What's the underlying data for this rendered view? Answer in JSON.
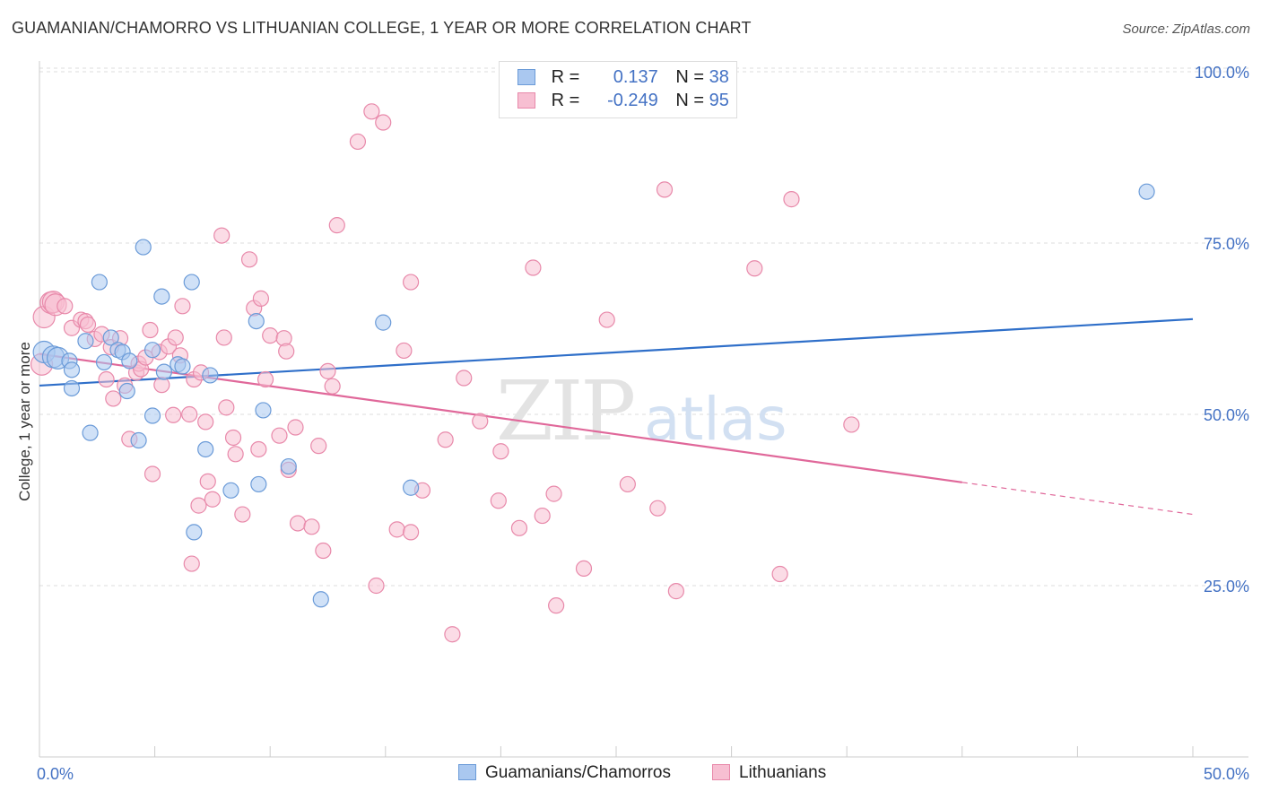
{
  "header": {
    "title": "GUAMANIAN/CHAMORRO VS LITHUANIAN COLLEGE, 1 YEAR OR MORE CORRELATION CHART",
    "source": "Source: ZipAtlas.com"
  },
  "legend": {
    "series1": {
      "r_label": "R =",
      "r_value": "0.137",
      "n_label": "N =",
      "n_value": "38"
    },
    "series2": {
      "r_label": "R =",
      "r_value": "-0.249",
      "n_label": "N =",
      "n_value": "95"
    }
  },
  "watermark": {
    "zip": "ZIP",
    "atlas": "atlas"
  },
  "colors": {
    "blue_fill": "#aac8f0",
    "blue_stroke": "#6b9bd8",
    "blue_line": "#2f6fc9",
    "pink_fill": "#f7bfd2",
    "pink_stroke": "#e889aa",
    "pink_line": "#e0689a",
    "grid": "#dddddd",
    "tick_label": "#4472c4"
  },
  "chart_data": {
    "type": "scatter",
    "title": "GUAMANIAN/CHAMORRO VS LITHUANIAN COLLEGE, 1 YEAR OR MORE CORRELATION CHART",
    "xlabel": "",
    "ylabel": "College, 1 year or more",
    "xlim": [
      0,
      50
    ],
    "ylim": [
      0,
      100
    ],
    "x_tick_labels": [
      "0.0%",
      "50.0%"
    ],
    "y_ticks": [
      25,
      50,
      75,
      100
    ],
    "y_tick_labels": [
      "25.0%",
      "50.0%",
      "75.0%",
      "100.0%"
    ],
    "grid": true,
    "series": [
      {
        "name": "Guamanians/Chamorros",
        "color": "blue",
        "trend": {
          "x": [
            0,
            50
          ],
          "y": [
            54.2,
            63.9
          ],
          "dash_from": null
        },
        "points": [
          [
            0.2,
            59.1
          ],
          [
            0.6,
            58.4
          ],
          [
            0.8,
            58.2
          ],
          [
            1.3,
            57.8
          ],
          [
            1.4,
            53.8
          ],
          [
            1.4,
            56.5
          ],
          [
            2.0,
            60.7
          ],
          [
            2.2,
            47.3
          ],
          [
            2.6,
            69.3
          ],
          [
            2.8,
            57.6
          ],
          [
            3.1,
            61.2
          ],
          [
            3.4,
            59.4
          ],
          [
            3.6,
            59.1
          ],
          [
            3.8,
            53.4
          ],
          [
            3.9,
            57.8
          ],
          [
            4.3,
            46.2
          ],
          [
            4.5,
            74.4
          ],
          [
            4.9,
            59.4
          ],
          [
            4.9,
            49.8
          ],
          [
            5.3,
            67.2
          ],
          [
            5.4,
            56.2
          ],
          [
            6.0,
            57.3
          ],
          [
            6.2,
            57.0
          ],
          [
            6.6,
            69.3
          ],
          [
            6.7,
            32.8
          ],
          [
            7.2,
            44.9
          ],
          [
            7.4,
            55.7
          ],
          [
            8.3,
            38.9
          ],
          [
            9.4,
            63.6
          ],
          [
            9.5,
            39.8
          ],
          [
            9.7,
            50.6
          ],
          [
            10.8,
            42.4
          ],
          [
            12.2,
            23.0
          ],
          [
            14.9,
            63.4
          ],
          [
            16.1,
            39.3
          ],
          [
            48.0,
            82.5
          ]
        ]
      },
      {
        "name": "Lithuanians",
        "color": "pink",
        "trend": {
          "x": [
            0,
            50
          ],
          "y": [
            58.8,
            35.4
          ],
          "dash_from": 40
        },
        "points": [
          [
            0.1,
            57.3
          ],
          [
            0.2,
            64.2
          ],
          [
            0.5,
            66.3
          ],
          [
            0.6,
            66.4
          ],
          [
            0.7,
            66.0
          ],
          [
            1.1,
            65.8
          ],
          [
            1.4,
            62.6
          ],
          [
            1.8,
            63.8
          ],
          [
            2.0,
            63.6
          ],
          [
            2.1,
            63.1
          ],
          [
            2.4,
            61.0
          ],
          [
            2.7,
            61.7
          ],
          [
            2.9,
            55.1
          ],
          [
            3.1,
            59.8
          ],
          [
            3.2,
            52.3
          ],
          [
            3.5,
            61.1
          ],
          [
            3.7,
            54.2
          ],
          [
            3.9,
            46.4
          ],
          [
            4.2,
            56.1
          ],
          [
            4.3,
            57.4
          ],
          [
            4.4,
            56.6
          ],
          [
            4.6,
            58.3
          ],
          [
            4.8,
            62.3
          ],
          [
            4.9,
            41.3
          ],
          [
            5.2,
            59.1
          ],
          [
            5.3,
            54.3
          ],
          [
            5.6,
            59.9
          ],
          [
            5.8,
            49.9
          ],
          [
            5.9,
            61.2
          ],
          [
            6.1,
            58.6
          ],
          [
            6.2,
            65.8
          ],
          [
            6.5,
            50.0
          ],
          [
            6.6,
            28.2
          ],
          [
            6.7,
            55.1
          ],
          [
            6.9,
            36.7
          ],
          [
            7.0,
            56.1
          ],
          [
            7.2,
            48.9
          ],
          [
            7.3,
            40.2
          ],
          [
            7.5,
            37.6
          ],
          [
            7.9,
            76.1
          ],
          [
            8.0,
            61.2
          ],
          [
            8.1,
            51.0
          ],
          [
            8.4,
            46.6
          ],
          [
            8.5,
            44.2
          ],
          [
            8.8,
            35.4
          ],
          [
            9.1,
            72.6
          ],
          [
            9.3,
            65.5
          ],
          [
            9.5,
            44.9
          ],
          [
            9.6,
            66.9
          ],
          [
            9.8,
            55.1
          ],
          [
            10.0,
            61.5
          ],
          [
            10.4,
            46.9
          ],
          [
            10.6,
            61.1
          ],
          [
            10.7,
            59.2
          ],
          [
            10.8,
            41.9
          ],
          [
            11.1,
            48.1
          ],
          [
            11.2,
            34.1
          ],
          [
            11.8,
            33.6
          ],
          [
            12.1,
            45.4
          ],
          [
            12.3,
            30.1
          ],
          [
            12.5,
            56.3
          ],
          [
            12.7,
            54.1
          ],
          [
            12.9,
            77.6
          ],
          [
            13.8,
            89.8
          ],
          [
            14.4,
            94.2
          ],
          [
            14.6,
            25.0
          ],
          [
            14.9,
            92.6
          ],
          [
            15.5,
            33.2
          ],
          [
            15.8,
            59.3
          ],
          [
            16.1,
            69.3
          ],
          [
            16.1,
            32.8
          ],
          [
            16.6,
            38.9
          ],
          [
            17.6,
            46.3
          ],
          [
            17.9,
            17.9
          ],
          [
            18.4,
            55.3
          ],
          [
            19.1,
            49.0
          ],
          [
            19.9,
            37.4
          ],
          [
            20.0,
            44.6
          ],
          [
            20.8,
            33.4
          ],
          [
            21.4,
            71.4
          ],
          [
            21.8,
            35.2
          ],
          [
            22.3,
            38.4
          ],
          [
            22.4,
            22.1
          ],
          [
            23.6,
            27.5
          ],
          [
            24.6,
            63.8
          ],
          [
            25.5,
            39.8
          ],
          [
            26.8,
            36.3
          ],
          [
            27.1,
            82.8
          ],
          [
            27.6,
            24.2
          ],
          [
            31.0,
            71.3
          ],
          [
            32.1,
            26.7
          ],
          [
            32.6,
            81.4
          ],
          [
            35.2,
            48.5
          ]
        ]
      }
    ]
  },
  "bottom_legend": {
    "items": [
      {
        "label": "Guamanians/Chamorros"
      },
      {
        "label": "Lithuanians"
      }
    ]
  }
}
